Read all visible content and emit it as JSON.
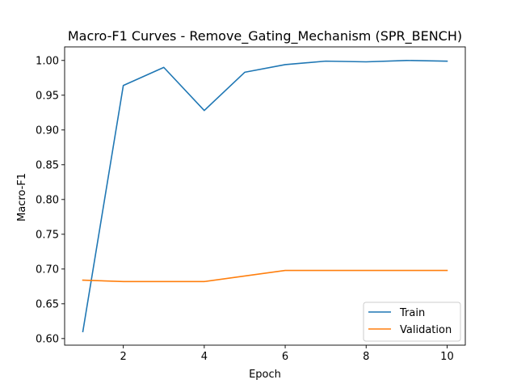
{
  "chart_data": {
    "type": "line",
    "title": "Macro-F1 Curves - Remove_Gating_Mechanism (SPR_BENCH)",
    "xlabel": "Epoch",
    "ylabel": "Macro-F1",
    "x": [
      1,
      2,
      3,
      4,
      5,
      6,
      7,
      8,
      9,
      10
    ],
    "xlim": [
      0.55,
      10.45
    ],
    "ylim": [
      0.5905,
      1.0195
    ],
    "xticks": [
      2,
      4,
      6,
      8,
      10
    ],
    "yticks": [
      0.6,
      0.65,
      0.7,
      0.75,
      0.8,
      0.85,
      0.9,
      0.95,
      1.0
    ],
    "xtick_labels": [
      "2",
      "4",
      "6",
      "8",
      "10"
    ],
    "ytick_labels": [
      "0.60",
      "0.65",
      "0.70",
      "0.75",
      "0.80",
      "0.85",
      "0.90",
      "0.95",
      "1.00"
    ],
    "grid": false,
    "legend_position": "lower-right",
    "series": [
      {
        "name": "Train",
        "color": "#1f77b4",
        "values": [
          0.61,
          0.964,
          0.99,
          0.928,
          0.983,
          0.994,
          0.999,
          0.998,
          1.0,
          0.999
        ]
      },
      {
        "name": "Validation",
        "color": "#ff7f0e",
        "values": [
          0.684,
          0.682,
          0.682,
          0.682,
          0.69,
          0.698,
          0.698,
          0.698,
          0.698,
          0.698
        ]
      }
    ]
  }
}
